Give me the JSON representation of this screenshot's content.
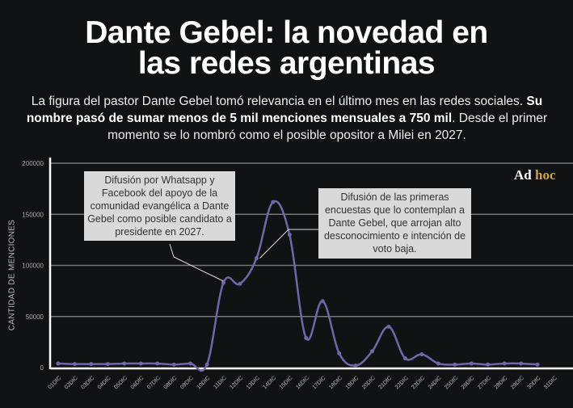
{
  "header": {
    "title_line1": "Dante Gebel: la novedad en",
    "title_line2": "las redes argentinas",
    "subtitle_pre": "La figura del pastor Dante Gebel tomó relevancia en el último mes en las redes sociales. ",
    "subtitle_bold": "Su nombre pasó de sumar menos de 5 mil menciones mensuales a 750 mil",
    "subtitle_post": ". Desde el primer momento se lo nombró como el posible opositor a Milei en 2027."
  },
  "logo": {
    "part1": "Ad",
    "part2": "hoc"
  },
  "chart_data": {
    "type": "line",
    "title": "",
    "xlabel": "",
    "ylabel": "CANTIDAD DE MENCIONES",
    "ylim": [
      0,
      200000
    ],
    "yticks": [
      "0",
      "50000",
      "100000",
      "150000",
      "200000"
    ],
    "grid": true,
    "series_color": "#6e68a8",
    "categories": [
      "01DIC",
      "02DIC",
      "03DIC",
      "04DIC",
      "05DIC",
      "06DIC",
      "07DIC",
      "08DIC",
      "09DIC",
      "10DIC",
      "11DIC",
      "12DIC",
      "13DIC",
      "14DIC",
      "15DIC",
      "16DIC",
      "17DIC",
      "18DIC",
      "19DIC",
      "20DIC",
      "21DIC",
      "22DIC",
      "23DIC",
      "24DIC",
      "25DIC",
      "26DIC",
      "27DIC",
      "28DIC",
      "29DIC",
      "30DIC",
      "31DIC"
    ],
    "values": [
      4000,
      3500,
      3500,
      3500,
      4000,
      4000,
      4000,
      3000,
      4000,
      3000,
      83000,
      82000,
      107000,
      162000,
      130000,
      29000,
      65000,
      14000,
      2000,
      16000,
      40000,
      9000,
      13000,
      4000,
      3000,
      4000,
      3000,
      4000,
      4000,
      3000,
      null
    ],
    "annotations": [
      {
        "category": "11DIC",
        "text": "Difusión por Whatsapp y Facebook del apoyo de la comunidad evangélica a Dante Gebel como posible candidato a presidente en 2027."
      },
      {
        "category": "13DIC",
        "text": "Difusión de las primeras encuestas que lo contemplan a Dante Gebel, que arrojan alto desconocimiento e intención de voto baja."
      }
    ]
  }
}
